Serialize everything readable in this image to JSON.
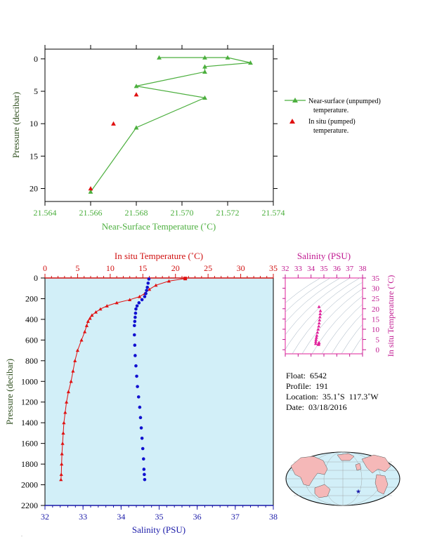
{
  "chart_data": [
    {
      "type": "line",
      "xlabel": "Near-Surface Temperature (˚C)",
      "ylabel": "Pressure (decibar)",
      "xlim": [
        21.564,
        21.574
      ],
      "ylim": [
        22,
        -1.5
      ],
      "x_ticks": [
        "21.564",
        "21.566",
        "21.568",
        "21.570",
        "21.572",
        "21.574"
      ],
      "y_ticks": [
        "0",
        "5",
        "10",
        "15",
        "20"
      ],
      "legend_position": "right",
      "series": [
        {
          "name": "Near-surface (unpumped) temperature.",
          "color": "#4caf3e",
          "marker": "triangle",
          "x": [
            21.569,
            21.571,
            21.572,
            21.573,
            21.571,
            21.571,
            21.568,
            21.571,
            21.568,
            21.566
          ],
          "y": [
            -0.2,
            -0.2,
            -0.2,
            0.6,
            1.2,
            2.0,
            4.2,
            6.0,
            10.6,
            20.5
          ]
        },
        {
          "name": "In situ (pumped) temperature.",
          "color": "#e01010",
          "marker": "triangle",
          "x": [
            21.568,
            21.567,
            21.566
          ],
          "y": [
            5.5,
            10.0,
            20.0
          ]
        }
      ]
    },
    {
      "type": "line",
      "ylabel": "Pressure (decibar)",
      "xlabel_top": "In situ Temperature (˚C)",
      "xlabel_bottom": "Salinity (PSU)",
      "ylim": [
        2200,
        0
      ],
      "temperature_xlim": [
        0,
        35
      ],
      "salinity_xlim": [
        32,
        38
      ],
      "y_ticks": [
        "0",
        "200",
        "400",
        "600",
        "800",
        "1000",
        "1200",
        "1400",
        "1600",
        "1800",
        "2000",
        "2200"
      ],
      "temperature_ticks": [
        "0",
        "5",
        "10",
        "15",
        "20",
        "25",
        "30",
        "35"
      ],
      "salinity_ticks": [
        "32",
        "33",
        "34",
        "35",
        "36",
        "37",
        "38"
      ],
      "background": "#d2eff8",
      "series": [
        {
          "name": "In situ Temperature",
          "color": "#e01010",
          "marker": "triangle",
          "x": [
            21.5,
            19.0,
            17.0,
            16.0,
            15.3,
            14.5,
            13.0,
            11.0,
            9.5,
            8.5,
            7.8,
            7.2,
            6.9,
            6.6,
            6.4,
            6.1,
            5.6,
            5.0,
            4.6,
            4.3,
            4.0,
            3.6,
            3.3,
            3.1,
            2.9,
            2.8,
            2.7,
            2.6,
            2.55,
            2.5,
            2.45
          ],
          "y": [
            5,
            30,
            70,
            110,
            150,
            180,
            210,
            240,
            270,
            300,
            330,
            360,
            390,
            420,
            460,
            520,
            600,
            700,
            800,
            900,
            1000,
            1100,
            1200,
            1300,
            1400,
            1500,
            1600,
            1700,
            1800,
            1900,
            1950
          ]
        },
        {
          "name": "Salinity",
          "color": "#1010d0",
          "marker": "dot",
          "x": [
            34.73,
            34.71,
            34.69,
            34.67,
            34.65,
            34.62,
            34.55,
            34.47,
            34.42,
            34.39,
            34.38,
            34.37,
            34.36,
            34.35,
            34.35,
            34.36,
            34.37,
            34.39,
            34.41,
            34.43,
            34.46,
            34.49,
            34.51,
            34.53,
            34.55,
            34.57,
            34.59,
            34.6,
            34.61,
            34.62
          ],
          "y": [
            10,
            50,
            90,
            120,
            150,
            180,
            210,
            240,
            270,
            300,
            340,
            380,
            420,
            460,
            550,
            650,
            750,
            850,
            950,
            1050,
            1150,
            1250,
            1350,
            1450,
            1550,
            1650,
            1750,
            1850,
            1900,
            1950
          ]
        }
      ]
    },
    {
      "type": "scatter",
      "xlabel": "Salinity (PSU)",
      "ylabel": "In situ Temperature (˚C)",
      "xlim": [
        32,
        38
      ],
      "ylim": [
        -2,
        35
      ],
      "x_ticks": [
        "32",
        "33",
        "34",
        "35",
        "36",
        "37",
        "38"
      ],
      "y_ticks": [
        "0",
        "5",
        "10",
        "15",
        "20",
        "25",
        "30",
        "35"
      ],
      "color": "#e0209a",
      "x": [
        34.36,
        34.37,
        34.39,
        34.42,
        34.45,
        34.5,
        34.55,
        34.6,
        34.63,
        34.66,
        34.69,
        34.71,
        34.73,
        34.62,
        34.59,
        34.58,
        34.58,
        34.59,
        34.6,
        34.62
      ],
      "y": [
        3.0,
        4.0,
        5.0,
        6.0,
        7.0,
        8.5,
        10.0,
        11.5,
        13.0,
        14.5,
        16.0,
        17.5,
        19.0,
        21.0,
        2.5,
        2.7,
        2.9,
        3.1,
        3.3,
        3.5
      ]
    }
  ],
  "info": {
    "float": "Float:  6542",
    "profile": "Profile:  191",
    "location": "Location:  35.1˚S  117.3˚W",
    "date": "Date:  03/18/2016"
  }
}
